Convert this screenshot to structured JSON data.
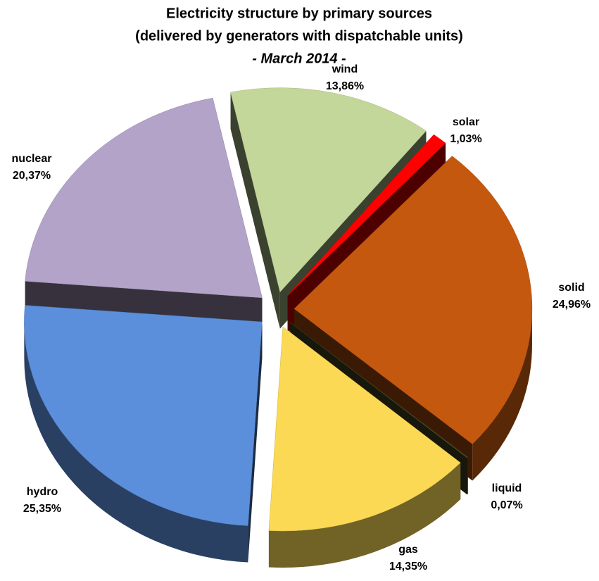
{
  "chart_data": {
    "type": "pie",
    "title": "Electricity structure by primary sources",
    "subtitle": "(delivered by generators with dispatchable units)",
    "annotation": "- March 2014 -",
    "categories": [
      "wind",
      "solar",
      "solid",
      "liquid",
      "gas",
      "hydro",
      "nuclear"
    ],
    "values": [
      13.86,
      1.03,
      24.96,
      0.07,
      14.35,
      25.35,
      20.37
    ],
    "value_labels": [
      "13,86%",
      "1,03%",
      "24,96%",
      "0,07%",
      "14,35%",
      "25,35%",
      "20,37%"
    ],
    "colors": [
      "#c4d79b",
      "#ff0000",
      "#c5580f",
      "#4b4b25",
      "#fcd955",
      "#5b8fdb",
      "#b3a3c8"
    ]
  }
}
